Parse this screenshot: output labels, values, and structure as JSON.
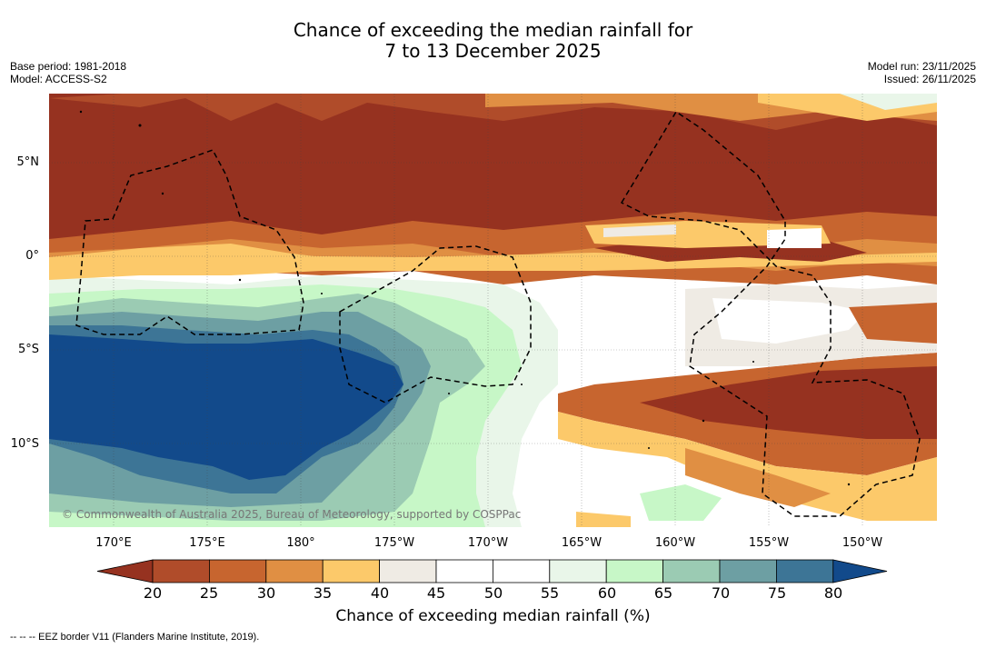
{
  "title": {
    "line1": "Chance of exceeding the median rainfall for",
    "line2": "7 to 13 December 2025"
  },
  "left_meta": {
    "base_period": "Base period: 1981-2018",
    "model": "Model: ACCESS-S2"
  },
  "right_meta": {
    "model_run": "Model run: 23/11/2025",
    "issued": "Issued: 26/11/2025"
  },
  "lat_ticks": [
    "5°N",
    "0°",
    "5°S",
    "10°S"
  ],
  "lon_ticks": [
    "170°E",
    "175°E",
    "180°",
    "175°W",
    "170°W",
    "165°W",
    "160°W",
    "155°W",
    "150°W"
  ],
  "copyright": "© Commonwealth of Australia 2025, Bureau of Meteorology, supported by COSPPac",
  "colorbar": {
    "labels": [
      "20",
      "25",
      "30",
      "35",
      "40",
      "45",
      "50",
      "55",
      "60",
      "65",
      "70",
      "75",
      "80"
    ],
    "colors": [
      "#963220",
      "#b04c2a",
      "#c7652f",
      "#e08f43",
      "#fcc96a",
      "#efebe4",
      "#ffffff",
      "#ffffff",
      "#e9f6e9",
      "#c7f7c7",
      "#9bcbb3",
      "#6d9fa3",
      "#3d7596",
      "#124a8b"
    ],
    "title": "Chance of exceeding median rainfall (%)"
  },
  "legend": "--  --  -- EEZ border V11 (Flanders Marine Institute, 2019)."
}
